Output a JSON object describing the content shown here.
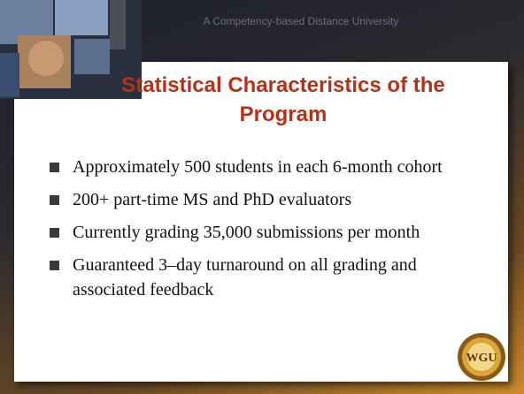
{
  "header": {
    "tagline": "A Competency-based Distance University"
  },
  "title": "Statistical Characteristics of the Program",
  "bullets": [
    "Approximately 500 students in each 6-month cohort",
    "200+ part-time MS and PhD evaluators",
    "Currently grading 35,000 submissions per month",
    "Guaranteed 3–day turnaround on all grading and associated feedback"
  ],
  "logo": {
    "monogram": "WGU"
  }
}
